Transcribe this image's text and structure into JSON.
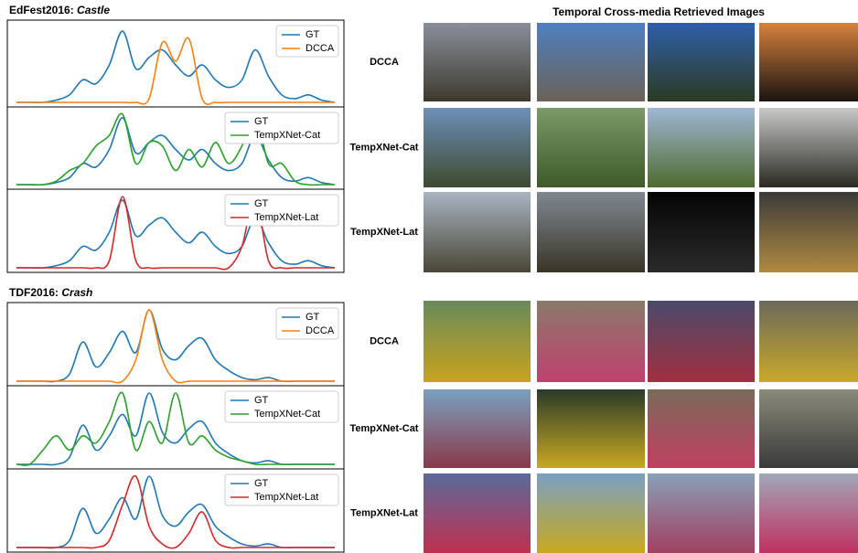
{
  "header": "Temporal Cross-media Retrieved Images",
  "figures": [
    {
      "event_prefix": "EdFest2016:",
      "event_name": "Castle",
      "panels": [
        {
          "method": "DCCA",
          "type": "line",
          "legend": "upper right",
          "series": [
            {
              "name": "GT",
              "color": "#1f77b4",
              "values": [
                0,
                0,
                0,
                0.03,
                0.1,
                0.3,
                0.25,
                0.5,
                0.95,
                0.45,
                0.6,
                0.7,
                0.5,
                0.35,
                0.5,
                0.3,
                0.2,
                0.3,
                0.7,
                0.35,
                0.1,
                0.05,
                0.1,
                0.03,
                0
              ]
            },
            {
              "name": "DCCA",
              "color": "#ff7f0e",
              "values": [
                0,
                0,
                0,
                0,
                0,
                0,
                0,
                0,
                0,
                0,
                0.05,
                0.8,
                0.55,
                0.85,
                0.05,
                0,
                0,
                0,
                0,
                0,
                0,
                0,
                0,
                0,
                0
              ]
            }
          ]
        },
        {
          "method": "TempXNet-Cat",
          "type": "line",
          "legend": "upper right",
          "series": [
            {
              "name": "GT",
              "color": "#1f77b4",
              "values": [
                0,
                0,
                0,
                0.03,
                0.1,
                0.3,
                0.25,
                0.5,
                0.95,
                0.45,
                0.6,
                0.7,
                0.5,
                0.35,
                0.5,
                0.3,
                0.2,
                0.3,
                0.7,
                0.35,
                0.1,
                0.05,
                0.1,
                0.03,
                0
              ]
            },
            {
              "name": "TempXNet-Cat",
              "color": "#2ca02c",
              "values": [
                0,
                0,
                0,
                0.05,
                0.2,
                0.3,
                0.55,
                0.7,
                1.0,
                0.3,
                0.6,
                0.55,
                0.2,
                0.5,
                0.25,
                0.6,
                0.3,
                0.55,
                1.0,
                0.3,
                0.3,
                0.05,
                0,
                0,
                0
              ]
            }
          ]
        },
        {
          "method": "TempXNet-Lat",
          "type": "line",
          "legend": "upper right",
          "series": [
            {
              "name": "GT",
              "color": "#1f77b4",
              "values": [
                0,
                0,
                0,
                0.03,
                0.1,
                0.3,
                0.25,
                0.5,
                0.95,
                0.45,
                0.6,
                0.7,
                0.5,
                0.35,
                0.5,
                0.3,
                0.2,
                0.3,
                0.7,
                0.35,
                0.1,
                0.05,
                0.1,
                0.03,
                0
              ]
            },
            {
              "name": "TempXNet-Lat",
              "color": "#d62728",
              "values": [
                0,
                0,
                0,
                0,
                0,
                0,
                0,
                0.1,
                1.0,
                0.1,
                0,
                0,
                0,
                0,
                0,
                0,
                0,
                0.3,
                1.0,
                0.1,
                0,
                0,
                0,
                0,
                0
              ]
            }
          ]
        }
      ]
    },
    {
      "event_prefix": "TDF2016:",
      "event_name": "Crash",
      "panels": [
        {
          "method": "DCCA",
          "type": "line",
          "legend": "upper right",
          "series": [
            {
              "name": "GT",
              "color": "#1f77b4",
              "values": [
                0,
                0,
                0,
                0,
                0.1,
                0.55,
                0.2,
                0.4,
                0.7,
                0.4,
                1.0,
                0.45,
                0.3,
                0.5,
                0.6,
                0.3,
                0.15,
                0.05,
                0.02,
                0.05,
                0,
                0,
                0,
                0,
                0
              ]
            },
            {
              "name": "DCCA",
              "color": "#ff7f0e",
              "values": [
                0,
                0,
                0,
                0,
                0,
                0,
                0,
                0,
                0,
                0.3,
                1.0,
                0.3,
                0,
                0,
                0,
                0,
                0,
                0,
                0,
                0,
                0,
                0,
                0,
                0,
                0
              ]
            }
          ]
        },
        {
          "method": "TempXNet-Cat",
          "type": "line",
          "legend": "upper right",
          "series": [
            {
              "name": "GT",
              "color": "#1f77b4",
              "values": [
                0,
                0,
                0,
                0,
                0.1,
                0.55,
                0.2,
                0.4,
                0.7,
                0.4,
                1.0,
                0.45,
                0.3,
                0.5,
                0.6,
                0.3,
                0.15,
                0.05,
                0.02,
                0.05,
                0,
                0,
                0,
                0,
                0
              ]
            },
            {
              "name": "TempXNet-Cat",
              "color": "#2ca02c",
              "values": [
                0,
                0,
                0.2,
                0.4,
                0.2,
                0.4,
                0.3,
                0.6,
                1.0,
                0.2,
                0.6,
                0.3,
                1.0,
                0.3,
                0.4,
                0.2,
                0.1,
                0.05,
                0,
                0,
                0,
                0,
                0,
                0,
                0
              ]
            }
          ]
        },
        {
          "method": "TempXNet-Lat",
          "type": "line",
          "legend": "upper right",
          "series": [
            {
              "name": "GT",
              "color": "#1f77b4",
              "values": [
                0,
                0,
                0,
                0,
                0.1,
                0.55,
                0.2,
                0.4,
                0.7,
                0.4,
                1.0,
                0.45,
                0.3,
                0.5,
                0.6,
                0.3,
                0.15,
                0.05,
                0.02,
                0.05,
                0,
                0,
                0,
                0,
                0
              ]
            },
            {
              "name": "TempXNet-Lat",
              "color": "#d62728",
              "values": [
                0,
                0,
                0,
                0,
                0,
                0,
                0,
                0.1,
                0.6,
                1.0,
                0.3,
                0.05,
                0,
                0.2,
                0.5,
                0.1,
                0,
                0,
                0,
                0,
                0,
                0,
                0,
                0,
                0
              ]
            }
          ]
        }
      ]
    }
  ]
}
